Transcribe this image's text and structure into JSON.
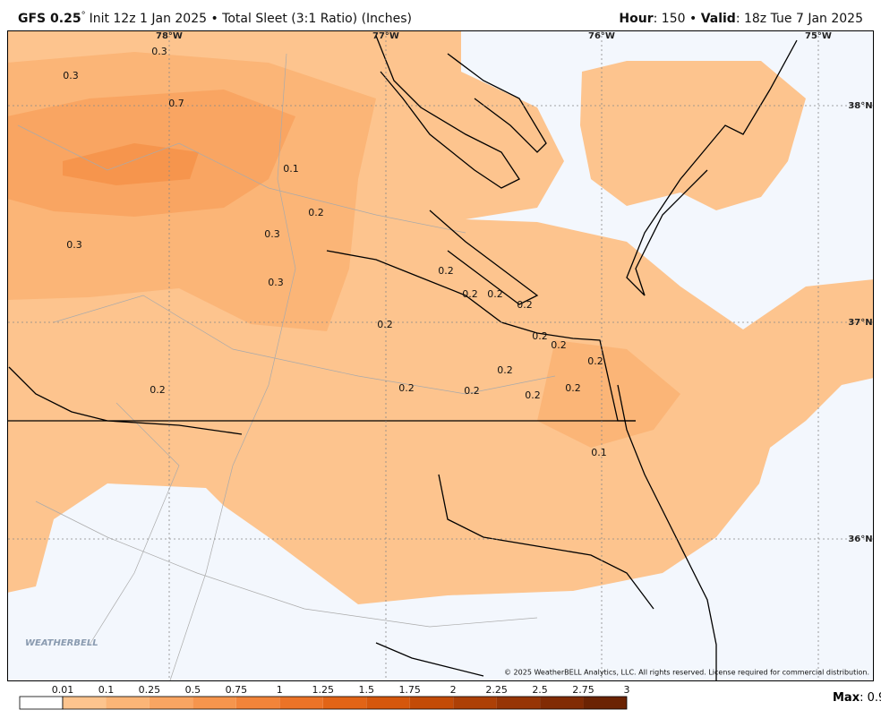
{
  "header": {
    "model": "GFS 0.25",
    "degree": "°",
    "description": "Init 12z 1 Jan 2025 • Total Sleet (3:1 Ratio) (Inches)",
    "hour_label": "Hour",
    "hour_value": ": 150 • ",
    "valid_label": "Valid",
    "valid_value": ": 18z Tue 7 Jan 2025"
  },
  "longitude_labels": [
    "78°W",
    "77°W",
    "76°W",
    "75°W"
  ],
  "latitude_labels": [
    "38°N",
    "37°N",
    "36°N"
  ],
  "contour_labels": [
    "0.3",
    "0.3",
    "0.7",
    "0.1",
    "0.2",
    "0.3",
    "0.3",
    "0.3",
    "0.2",
    "0.2",
    "0.2",
    "0.2",
    "0.2",
    "0.2",
    "0.2",
    "0.2",
    "0.2",
    "0.2",
    "0.2",
    "0.2",
    "0.2",
    "0.2",
    "0.1"
  ],
  "watermark": "WEATHERBELL",
  "copyright": "© 2025 WeatherBELL Analytics, LLC. All rights reserved. License required for commercial distribution.",
  "colorbar": {
    "ticks": [
      "0.01",
      "0.1",
      "0.25",
      "0.5",
      "0.75",
      "1",
      "1.25",
      "1.5",
      "1.75",
      "2",
      "2.25",
      "2.5",
      "2.75",
      "3"
    ],
    "colors": [
      "#fdc48e",
      "#fbb577",
      "#f9a562",
      "#f6954d",
      "#f2843a",
      "#ec7327",
      "#e26416",
      "#d5570c",
      "#c34b07",
      "#ad4006",
      "#973505",
      "#812b04",
      "#6b2303"
    ]
  },
  "max": {
    "label": "Max",
    "value": ": 0.9"
  }
}
